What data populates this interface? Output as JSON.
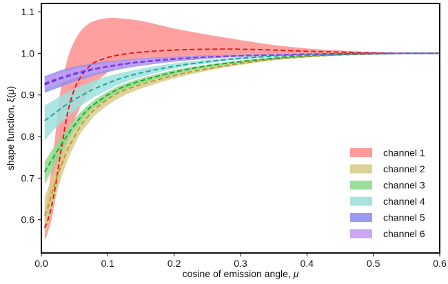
{
  "chart_data": {
    "type": "area",
    "title": "",
    "xlabel_text": "cosine of emission angle, ",
    "xlabel_symbol": "μ",
    "ylabel": "shape function, ξ(μ)",
    "xlim": [
      0.0,
      0.6
    ],
    "ylim": [
      0.52,
      1.12
    ],
    "x_ticks": [
      "0.0",
      "0.1",
      "0.2",
      "0.3",
      "0.4",
      "0.5",
      "0.6"
    ],
    "y_ticks": [
      "0.6",
      "0.7",
      "0.8",
      "0.9",
      "1.0",
      "1.1"
    ],
    "grid": false,
    "legend_position": "lower-right",
    "x": [
      0.005,
      0.01,
      0.015,
      0.02,
      0.025,
      0.03,
      0.04,
      0.05,
      0.06,
      0.07,
      0.08,
      0.1,
      0.12,
      0.15,
      0.2,
      0.25,
      0.3,
      0.35,
      0.4,
      0.45,
      0.5,
      0.55,
      0.6
    ],
    "series": [
      {
        "name": "channel 1",
        "band_color": "#ff8f8f",
        "line_color": "#e8171b",
        "lower": [
          0.55,
          0.57,
          0.6,
          0.64,
          0.68,
          0.72,
          0.79,
          0.84,
          0.875,
          0.905,
          0.925,
          0.955,
          0.97,
          0.985,
          0.99,
          0.993,
          0.995,
          0.997,
          0.998,
          0.999,
          0.999,
          1.0,
          1.0
        ],
        "center": [
          0.58,
          0.6,
          0.63,
          0.67,
          0.72,
          0.77,
          0.86,
          0.915,
          0.945,
          0.965,
          0.978,
          0.99,
          0.997,
          1.003,
          1.008,
          1.01,
          1.01,
          1.008,
          1.005,
          1.003,
          1.001,
          1.0,
          1.0
        ],
        "upper": [
          0.62,
          0.66,
          0.72,
          0.79,
          0.86,
          0.92,
          0.99,
          1.03,
          1.055,
          1.07,
          1.078,
          1.085,
          1.084,
          1.078,
          1.06,
          1.045,
          1.032,
          1.02,
          1.012,
          1.007,
          1.003,
          1.001,
          1.0
        ]
      },
      {
        "name": "channel 2",
        "band_color": "#d8cc8c",
        "line_color": "#b59a2c",
        "lower": [
          0.56,
          0.585,
          0.615,
          0.645,
          0.675,
          0.7,
          0.745,
          0.78,
          0.81,
          0.83,
          0.85,
          0.875,
          0.895,
          0.915,
          0.94,
          0.958,
          0.972,
          0.983,
          0.99,
          0.995,
          0.998,
          1.0,
          1.0
        ],
        "center": [
          0.61,
          0.63,
          0.66,
          0.685,
          0.71,
          0.73,
          0.77,
          0.8,
          0.828,
          0.848,
          0.865,
          0.89,
          0.908,
          0.925,
          0.947,
          0.963,
          0.976,
          0.986,
          0.992,
          0.996,
          0.998,
          1.0,
          1.0
        ],
        "upper": [
          0.655,
          0.675,
          0.7,
          0.72,
          0.74,
          0.76,
          0.795,
          0.825,
          0.848,
          0.866,
          0.88,
          0.903,
          0.92,
          0.935,
          0.954,
          0.968,
          0.979,
          0.988,
          0.993,
          0.997,
          0.999,
          1.0,
          1.0
        ]
      },
      {
        "name": "channel 3",
        "band_color": "#8fdc8f",
        "line_color": "#2aa02a",
        "lower": [
          0.685,
          0.7,
          0.715,
          0.73,
          0.745,
          0.76,
          0.79,
          0.815,
          0.835,
          0.855,
          0.87,
          0.892,
          0.91,
          0.928,
          0.95,
          0.966,
          0.978,
          0.987,
          0.993,
          0.997,
          0.999,
          1.0,
          1.0
        ],
        "center": [
          0.715,
          0.728,
          0.742,
          0.755,
          0.768,
          0.78,
          0.805,
          0.828,
          0.848,
          0.865,
          0.878,
          0.9,
          0.917,
          0.934,
          0.955,
          0.97,
          0.98,
          0.988,
          0.994,
          0.997,
          0.999,
          1.0,
          1.0
        ],
        "upper": [
          0.74,
          0.752,
          0.765,
          0.777,
          0.789,
          0.8,
          0.822,
          0.842,
          0.86,
          0.875,
          0.888,
          0.908,
          0.924,
          0.94,
          0.96,
          0.973,
          0.983,
          0.99,
          0.995,
          0.998,
          1.0,
          1.0,
          1.0
        ]
      },
      {
        "name": "channel 4",
        "band_color": "#9ee0dc",
        "line_color": "#1aa8a0",
        "lower": [
          0.79,
          0.8,
          0.81,
          0.818,
          0.826,
          0.834,
          0.848,
          0.862,
          0.874,
          0.885,
          0.895,
          0.912,
          0.927,
          0.943,
          0.963,
          0.976,
          0.985,
          0.991,
          0.995,
          0.998,
          0.999,
          1.0,
          1.0
        ],
        "center": [
          0.838,
          0.844,
          0.85,
          0.856,
          0.862,
          0.868,
          0.879,
          0.889,
          0.898,
          0.907,
          0.915,
          0.928,
          0.94,
          0.953,
          0.969,
          0.98,
          0.988,
          0.993,
          0.996,
          0.998,
          0.999,
          1.0,
          1.0
        ],
        "upper": [
          0.875,
          0.879,
          0.884,
          0.889,
          0.894,
          0.899,
          0.907,
          0.915,
          0.922,
          0.929,
          0.935,
          0.945,
          0.953,
          0.963,
          0.976,
          0.985,
          0.991,
          0.995,
          0.997,
          0.999,
          1.0,
          1.0,
          1.0
        ]
      },
      {
        "name": "channel 5",
        "band_color": "#8f8fef",
        "line_color": "#3a2ee0",
        "lower": [
          0.905,
          0.908,
          0.911,
          0.914,
          0.917,
          0.92,
          0.926,
          0.932,
          0.937,
          0.942,
          0.947,
          0.955,
          0.962,
          0.97,
          0.98,
          0.987,
          0.992,
          0.995,
          0.997,
          0.998,
          0.999,
          1.0,
          1.0
        ],
        "center": [
          0.925,
          0.928,
          0.931,
          0.934,
          0.937,
          0.94,
          0.945,
          0.95,
          0.954,
          0.958,
          0.962,
          0.968,
          0.973,
          0.979,
          0.986,
          0.991,
          0.994,
          0.996,
          0.998,
          0.999,
          1.0,
          1.0,
          1.0
        ],
        "upper": [
          0.945,
          0.948,
          0.951,
          0.954,
          0.957,
          0.96,
          0.964,
          0.968,
          0.971,
          0.974,
          0.977,
          0.981,
          0.984,
          0.988,
          0.992,
          0.995,
          0.997,
          0.998,
          0.999,
          1.0,
          1.0,
          1.0,
          1.0
        ]
      },
      {
        "name": "channel 6",
        "band_color": "#c79cf2",
        "line_color": "#8a3ee0",
        "lower": [
          0.915,
          0.918,
          0.921,
          0.924,
          0.927,
          0.93,
          0.935,
          0.94,
          0.944,
          0.948,
          0.952,
          0.959,
          0.965,
          0.972,
          0.982,
          0.988,
          0.993,
          0.995,
          0.997,
          0.998,
          0.999,
          1.0,
          1.0
        ],
        "center": [
          0.928,
          0.931,
          0.934,
          0.937,
          0.94,
          0.942,
          0.947,
          0.952,
          0.956,
          0.96,
          0.963,
          0.969,
          0.974,
          0.98,
          0.987,
          0.991,
          0.994,
          0.996,
          0.998,
          0.999,
          1.0,
          1.0,
          1.0
        ],
        "upper": [
          0.94,
          0.943,
          0.946,
          0.949,
          0.952,
          0.955,
          0.959,
          0.963,
          0.967,
          0.97,
          0.973,
          0.978,
          0.982,
          0.986,
          0.991,
          0.994,
          0.996,
          0.998,
          0.999,
          1.0,
          1.0,
          1.0,
          1.0
        ]
      }
    ]
  }
}
